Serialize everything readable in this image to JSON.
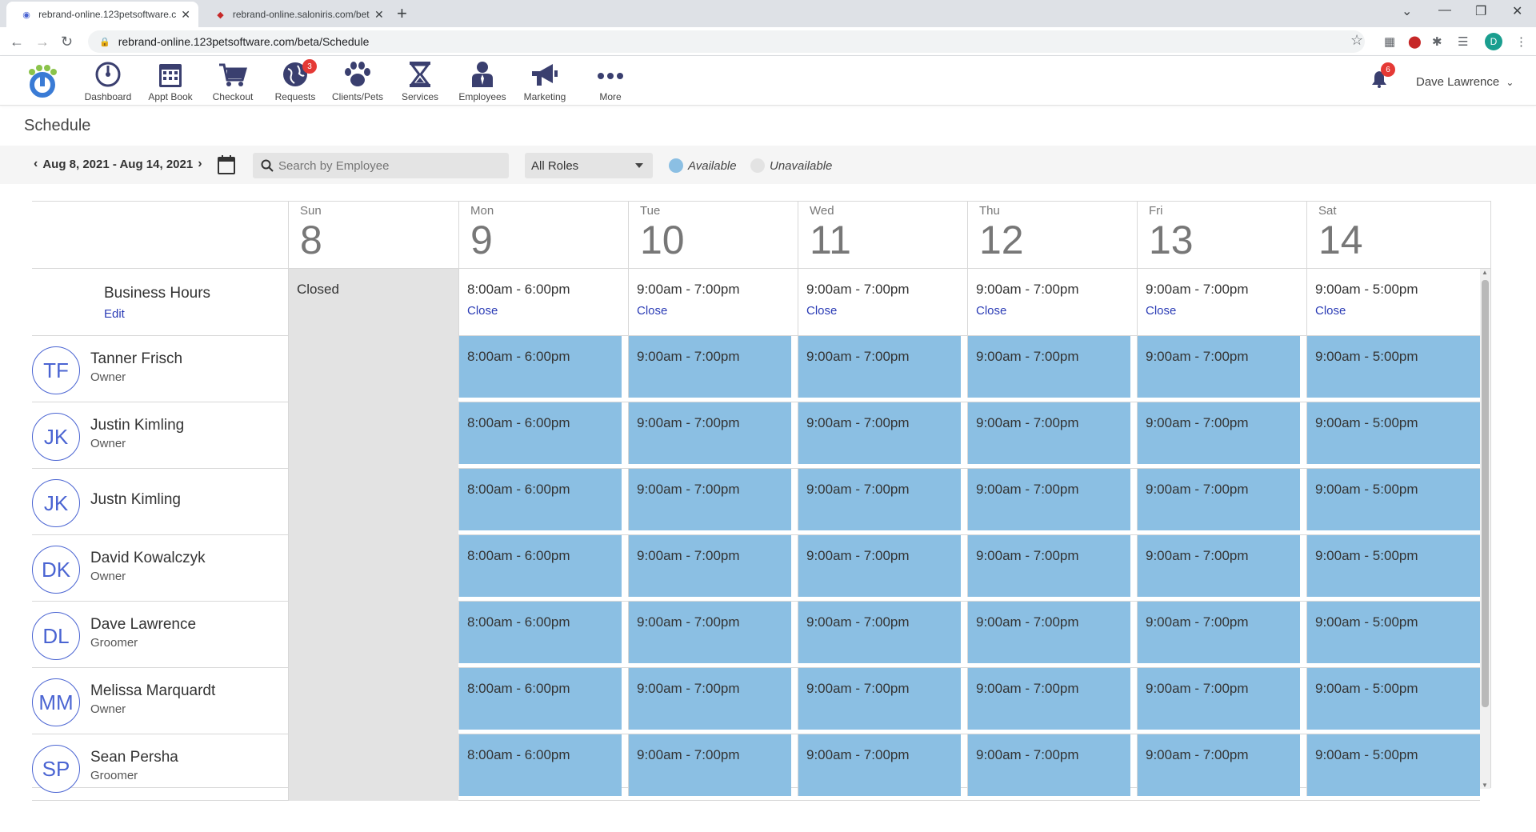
{
  "browser": {
    "tabs": [
      {
        "title": "rebrand-online.123petsoftware.c",
        "active": true
      },
      {
        "title": "rebrand-online.saloniris.com/bet",
        "active": false
      }
    ],
    "url": "rebrand-online.123petsoftware.com/beta/Schedule",
    "profile_initial": "D"
  },
  "header": {
    "nav": [
      {
        "label": "Dashboard",
        "icon": "dashboard-icon"
      },
      {
        "label": "Appt Book",
        "icon": "calendar-icon"
      },
      {
        "label": "Checkout",
        "icon": "cart-icon"
      },
      {
        "label": "Requests",
        "icon": "globe-icon",
        "badge": "3"
      },
      {
        "label": "Clients/Pets",
        "icon": "paw-icon"
      },
      {
        "label": "Services",
        "icon": "hourglass-icon"
      },
      {
        "label": "Employees",
        "icon": "employee-icon"
      },
      {
        "label": "Marketing",
        "icon": "megaphone-icon"
      },
      {
        "label": "More",
        "icon": "more-icon"
      }
    ],
    "notifications": "6",
    "user": "Dave Lawrence"
  },
  "page": {
    "title": "Schedule",
    "date_range": "Aug 8, 2021 - Aug 14, 2021",
    "search_placeholder": "Search by Employee",
    "roles_select": "All Roles",
    "legend": {
      "available": "Available",
      "unavailable": "Unavailable"
    },
    "colors": {
      "available": "#8bbfe3",
      "unavailable": "#e3e3e3",
      "link": "#2a3bb5",
      "avatar": "#4a64d2"
    }
  },
  "schedule": {
    "days": [
      {
        "dow": "Sun",
        "num": "8"
      },
      {
        "dow": "Mon",
        "num": "9"
      },
      {
        "dow": "Tue",
        "num": "10"
      },
      {
        "dow": "Wed",
        "num": "11"
      },
      {
        "dow": "Thu",
        "num": "12"
      },
      {
        "dow": "Fri",
        "num": "13"
      },
      {
        "dow": "Sat",
        "num": "14"
      }
    ],
    "business_hours": {
      "label": "Business Hours",
      "edit": "Edit",
      "close_label": "Close",
      "hours": [
        "Closed",
        "8:00am - 6:00pm",
        "9:00am - 7:00pm",
        "9:00am - 7:00pm",
        "9:00am - 7:00pm",
        "9:00am - 7:00pm",
        "9:00am - 5:00pm"
      ]
    },
    "employees": [
      {
        "initials": "TF",
        "name": "Tanner Frisch",
        "role": "Owner"
      },
      {
        "initials": "JK",
        "name": "Justin Kimling",
        "role": "Owner"
      },
      {
        "initials": "JK",
        "name": "Justn Kimling",
        "role": ""
      },
      {
        "initials": "DK",
        "name": "David Kowalczyk",
        "role": "Owner"
      },
      {
        "initials": "DL",
        "name": "Dave Lawrence",
        "role": "Groomer"
      },
      {
        "initials": "MM",
        "name": "Melissa Marquardt",
        "role": "Owner"
      },
      {
        "initials": "SP",
        "name": "Sean Persha",
        "role": "Groomer"
      }
    ],
    "shifts": [
      "8:00am - 6:00pm",
      "9:00am - 7:00pm",
      "9:00am - 7:00pm",
      "9:00am - 7:00pm",
      "9:00am - 7:00pm",
      "9:00am - 5:00pm"
    ]
  }
}
